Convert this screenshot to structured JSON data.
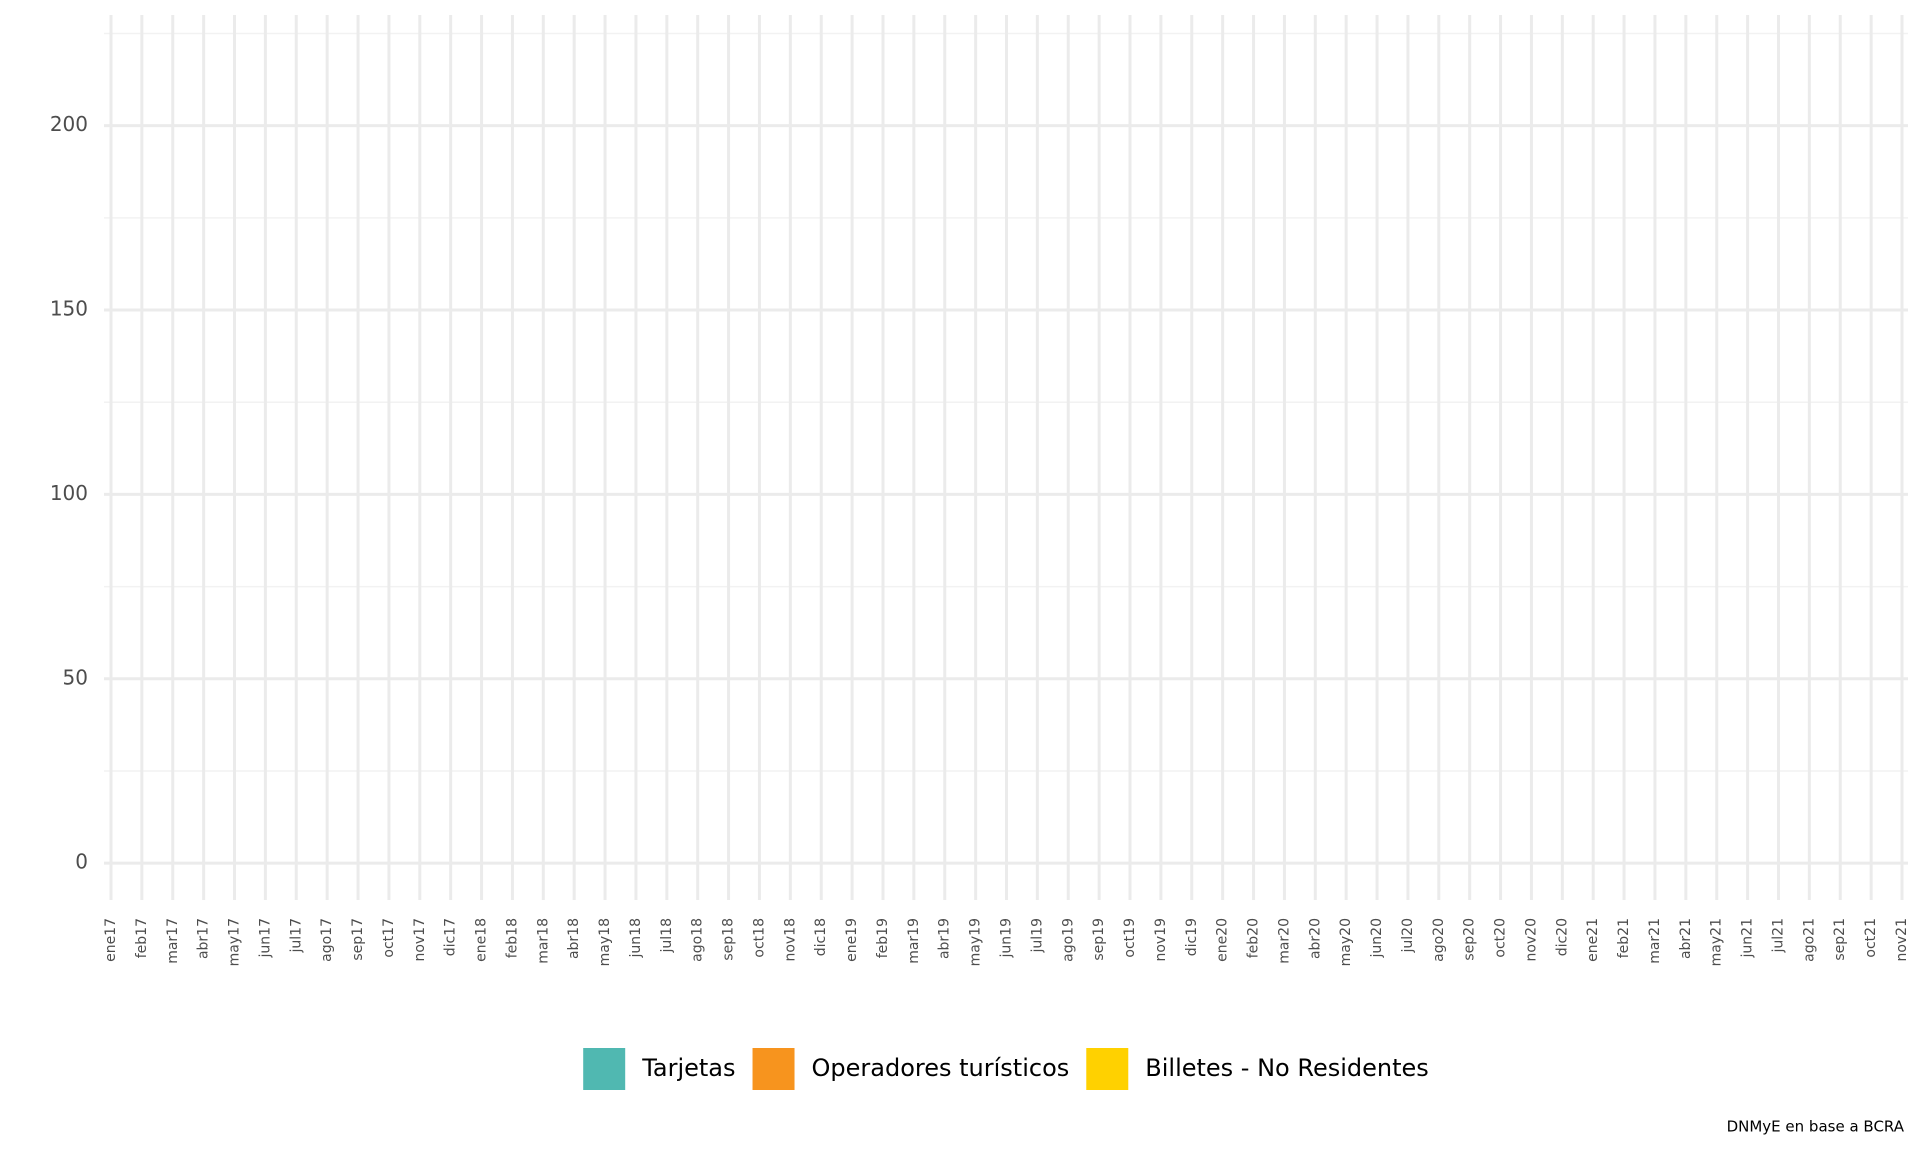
{
  "chart_data": {
    "type": "bar",
    "stacked": true,
    "categories": [
      "ene17",
      "feb17",
      "mar17",
      "abr17",
      "may17",
      "jun17",
      "jul17",
      "ago17",
      "sep17",
      "oct17",
      "nov17",
      "dic17",
      "ene18",
      "feb18",
      "mar18",
      "abr18",
      "may18",
      "jun18",
      "jul18",
      "ago18",
      "sep18",
      "oct18",
      "nov18",
      "dic18",
      "ene19",
      "feb19",
      "mar19",
      "abr19",
      "may19",
      "jun19",
      "jul19",
      "ago19",
      "sep19",
      "oct19",
      "nov19",
      "dic19",
      "ene20",
      "feb20",
      "mar20",
      "abr20",
      "may20",
      "jun20",
      "jul20",
      "ago20",
      "sep20",
      "oct20",
      "nov20",
      "dic20",
      "ene21",
      "feb21",
      "mar21",
      "abr21",
      "may21",
      "jun21",
      "jul21",
      "ago21",
      "sep21",
      "oct21",
      "nov21"
    ],
    "series": [
      {
        "name": "Tarjetas",
        "color": "#50b8b1",
        "values": [
          null,
          null,
          null,
          null,
          null,
          null,
          null,
          null,
          null,
          null,
          null,
          null,
          null,
          null,
          null,
          null,
          null,
          null,
          null,
          null,
          null,
          null,
          null,
          null,
          null,
          null,
          null,
          null,
          null,
          null,
          null,
          null,
          null,
          null,
          null,
          null,
          null,
          null,
          null,
          null,
          null,
          null,
          null,
          null,
          null,
          null,
          null,
          null,
          null,
          null,
          null,
          null,
          null,
          null,
          null,
          null,
          null,
          null,
          null
        ]
      },
      {
        "name": "Operadores turísticos",
        "color": "#f7941e",
        "values": [
          null,
          null,
          null,
          null,
          null,
          null,
          null,
          null,
          null,
          null,
          null,
          null,
          null,
          null,
          null,
          null,
          null,
          null,
          null,
          null,
          null,
          null,
          null,
          null,
          null,
          null,
          null,
          null,
          null,
          null,
          null,
          null,
          null,
          null,
          null,
          null,
          null,
          null,
          null,
          null,
          null,
          null,
          null,
          null,
          null,
          null,
          null,
          null,
          null,
          null,
          null,
          null,
          null,
          null,
          null,
          null,
          null,
          null,
          null
        ]
      },
      {
        "name": "Billetes - No Residentes",
        "color": "#ffd100",
        "values": [
          null,
          null,
          null,
          null,
          null,
          null,
          null,
          null,
          null,
          null,
          null,
          null,
          null,
          null,
          null,
          null,
          null,
          null,
          null,
          null,
          null,
          null,
          null,
          null,
          null,
          null,
          null,
          null,
          null,
          null,
          null,
          null,
          null,
          null,
          null,
          null,
          null,
          null,
          null,
          null,
          null,
          null,
          null,
          null,
          null,
          null,
          null,
          null,
          null,
          null,
          null,
          null,
          null,
          null,
          null,
          null,
          null,
          null,
          null
        ]
      }
    ],
    "ylim": [
      -10,
      230
    ],
    "yticks": [
      0,
      50,
      100,
      150,
      200
    ],
    "yminorticks": [
      25,
      75,
      125,
      175,
      225
    ],
    "grid": true,
    "legend": "bottom",
    "caption": "DNMyE en base a BCRA"
  }
}
